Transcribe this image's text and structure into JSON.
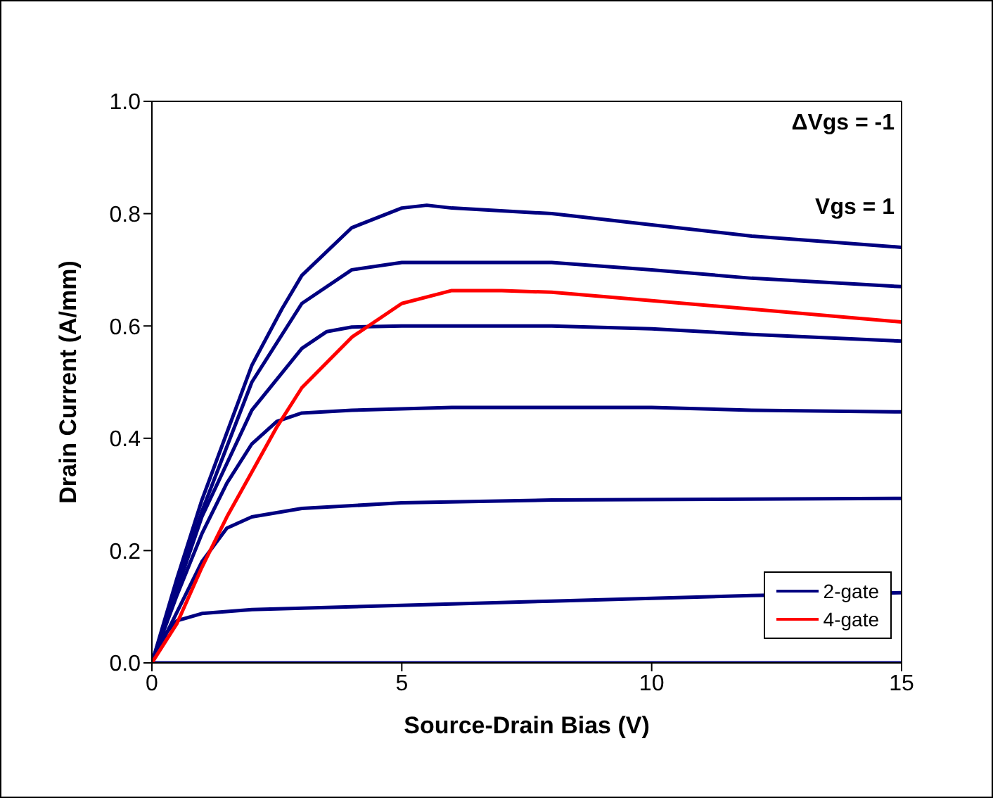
{
  "chart_data": {
    "type": "line",
    "xlabel": "Source-Drain Bias (V)",
    "ylabel": "Drain Current (A/mm)",
    "xlim": [
      0,
      15
    ],
    "ylim": [
      0,
      1
    ],
    "xticks": [
      0,
      5,
      10,
      15
    ],
    "yticks": [
      {
        "value": 0,
        "label": "0.0"
      },
      {
        "value": 0.2,
        "label": "0.2"
      },
      {
        "value": 0.4,
        "label": "0.4"
      },
      {
        "value": 0.6,
        "label": "0.6"
      },
      {
        "value": 0.8,
        "label": "0.8"
      },
      {
        "value": 1,
        "label": "1.0"
      }
    ],
    "legend": "bottom right",
    "marker": "none",
    "line_style": "solid",
    "annotations": [
      "ΔVgs = -1",
      "Vgs = 1"
    ],
    "series": [
      {
        "name": "2-gate",
        "color": "#000080",
        "x": [
          0,
          0.5,
          1,
          2,
          2.6,
          3,
          4,
          5,
          5.5,
          6,
          8,
          10,
          12,
          15
        ],
        "values": [
          0,
          0.15,
          0.29,
          0.53,
          0.63,
          0.69,
          0.775,
          0.81,
          0.815,
          0.81,
          0.8,
          0.78,
          0.76,
          0.74
        ]
      },
      {
        "color": "#000080",
        "x": [
          0,
          0.5,
          1,
          2,
          3,
          4,
          5,
          8,
          10,
          12,
          15
        ],
        "values": [
          0,
          0.14,
          0.27,
          0.5,
          0.64,
          0.7,
          0.713,
          0.713,
          0.7,
          0.685,
          0.67
        ]
      },
      {
        "color": "#000080",
        "x": [
          0,
          0.5,
          1,
          2,
          3,
          3.5,
          4,
          5,
          8,
          10,
          12,
          15
        ],
        "values": [
          0,
          0.13,
          0.26,
          0.45,
          0.56,
          0.59,
          0.598,
          0.6,
          0.6,
          0.595,
          0.585,
          0.573
        ]
      },
      {
        "color": "#000080",
        "x": [
          0,
          0.5,
          1,
          1.5,
          2,
          2.5,
          3,
          4,
          6,
          10,
          12,
          15
        ],
        "values": [
          0,
          0.12,
          0.23,
          0.32,
          0.39,
          0.43,
          0.445,
          0.45,
          0.455,
          0.455,
          0.45,
          0.447
        ]
      },
      {
        "color": "#000080",
        "x": [
          0,
          0.5,
          1,
          1.5,
          2,
          3,
          5,
          8,
          15
        ],
        "values": [
          0,
          0.09,
          0.18,
          0.24,
          0.26,
          0.275,
          0.285,
          0.29,
          0.293
        ]
      },
      {
        "color": "#000080",
        "x": [
          0,
          0.25,
          0.5,
          1,
          2,
          4,
          6,
          8,
          10,
          12,
          15
        ],
        "values": [
          0,
          0.05,
          0.075,
          0.088,
          0.095,
          0.1,
          0.105,
          0.11,
          0.115,
          0.12,
          0.125
        ]
      },
      {
        "color": "#000080",
        "x": [
          0,
          15
        ],
        "values": [
          0,
          0
        ]
      },
      {
        "name": "4-gate",
        "color": "#ff0000",
        "x": [
          0,
          0.5,
          1,
          1.5,
          2,
          2.5,
          3,
          4,
          5,
          6,
          7,
          8,
          10,
          12,
          15
        ],
        "values": [
          0,
          0.07,
          0.17,
          0.26,
          0.34,
          0.42,
          0.49,
          0.58,
          0.64,
          0.663,
          0.663,
          0.66,
          0.645,
          0.63,
          0.607
        ]
      }
    ]
  }
}
